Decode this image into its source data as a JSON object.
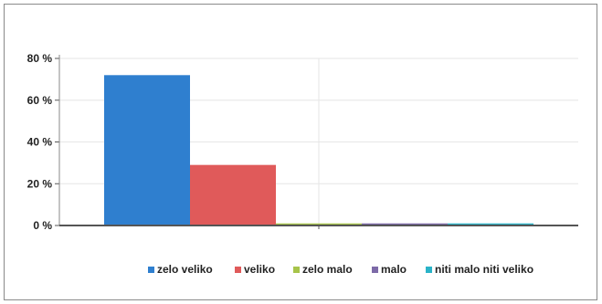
{
  "chart_data": {
    "type": "bar",
    "title": "",
    "xlabel": "",
    "ylabel": "",
    "ylim": [
      0,
      80
    ],
    "y_ticks": [
      "0 %",
      "20 %",
      "40 %",
      "60 %",
      "80 %"
    ],
    "y_tick_values": [
      0,
      20,
      40,
      60,
      80
    ],
    "grid": true,
    "legend_position": "bottom",
    "series": [
      {
        "name": "zelo veliko",
        "values": [
          72
        ],
        "color": "#2f7fcf"
      },
      {
        "name": "veliko",
        "values": [
          29
        ],
        "color": "#e05a5a"
      },
      {
        "name": "zelo malo",
        "values": [
          1
        ],
        "color": "#a7c44a"
      },
      {
        "name": "malo",
        "values": [
          1
        ],
        "color": "#7d6aa8"
      },
      {
        "name": "niti malo niti veliko",
        "values": [
          1
        ],
        "color": "#2ab3c8"
      }
    ]
  }
}
